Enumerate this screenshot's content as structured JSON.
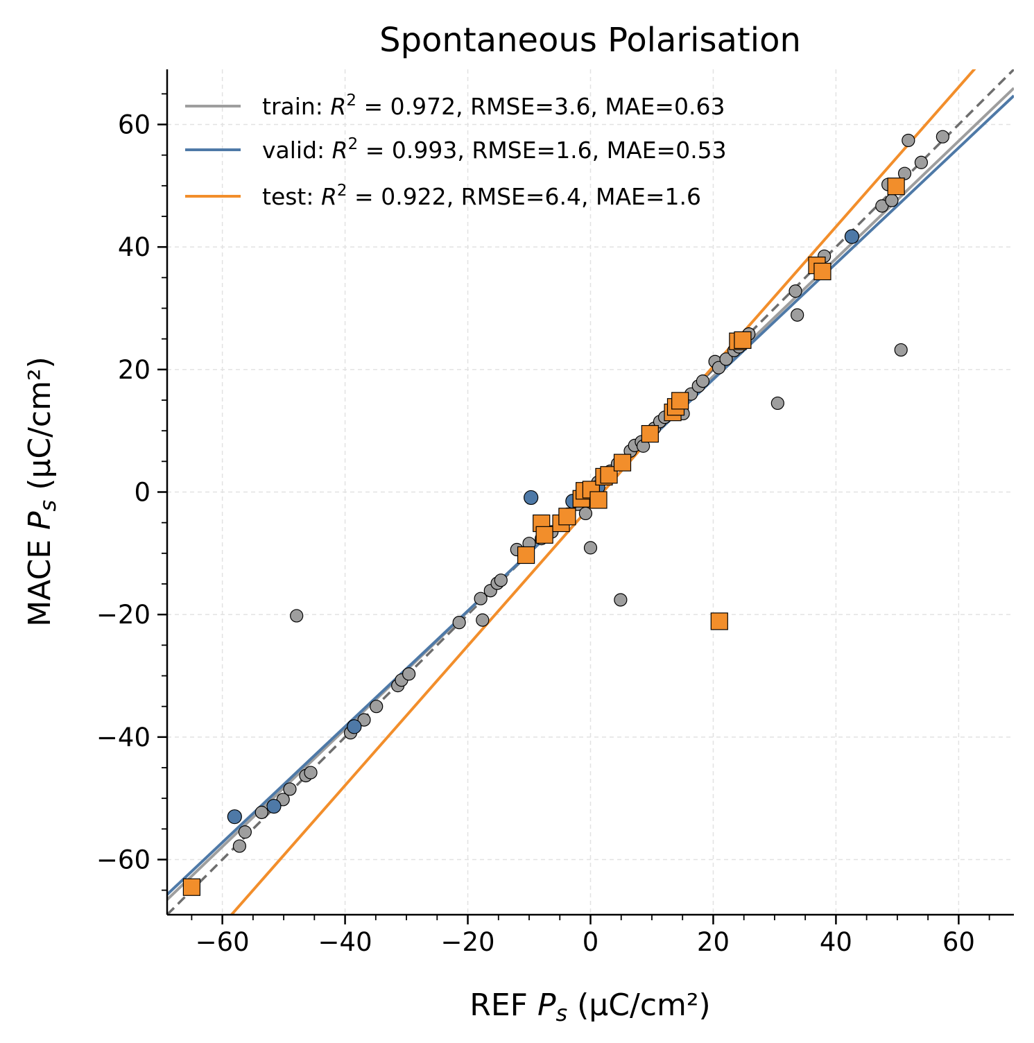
{
  "chart_data": {
    "type": "scatter",
    "title": "Spontaneous Polarisation",
    "xlabel": {
      "prefix": "REF ",
      "symbol": "P",
      "subscript": "s",
      "unit": " (µC/cm²)"
    },
    "ylabel": {
      "prefix": "MACE ",
      "symbol": "P",
      "subscript": "s",
      "unit": " (µC/cm²)"
    },
    "xlim": [
      -69,
      69
    ],
    "ylim": [
      -69,
      69
    ],
    "ticks": [
      -60,
      -40,
      -20,
      0,
      20,
      40,
      60
    ],
    "tick_labels": [
      "−60",
      "−40",
      "−20",
      "0",
      "20",
      "40",
      "60"
    ],
    "minor_step": 5,
    "grid": true,
    "legend_position": "top-left",
    "identity_line": true,
    "series": [
      {
        "name": "train",
        "color": "#9e9e9e",
        "marker": "circle",
        "legend": {
          "prefix": "train: ",
          "r2": "0.972",
          "rest": ", RMSE=3.6, MAE=0.63"
        },
        "fit": {
          "slope": 0.96,
          "intercept": -0.3
        },
        "points": [
          [
            -57.2,
            -57.8
          ],
          [
            -56.3,
            -55.5
          ],
          [
            -53.6,
            -52.3
          ],
          [
            -50.1,
            -50.2
          ],
          [
            -49.0,
            -48.5
          ],
          [
            -46.4,
            -46.3
          ],
          [
            -45.6,
            -45.8
          ],
          [
            -47.9,
            -20.2
          ],
          [
            -39.1,
            -39.3
          ],
          [
            -38.6,
            -38.2
          ],
          [
            -36.9,
            -37.2
          ],
          [
            -34.9,
            -35.0
          ],
          [
            -31.4,
            -31.6
          ],
          [
            -30.8,
            -30.7
          ],
          [
            -29.6,
            -29.7
          ],
          [
            -21.4,
            -21.3
          ],
          [
            -17.9,
            -17.4
          ],
          [
            -17.6,
            -20.9
          ],
          [
            -16.3,
            -16.1
          ],
          [
            -15.2,
            -14.9
          ],
          [
            -14.6,
            -14.4
          ],
          [
            -12.0,
            -9.4
          ],
          [
            -10.0,
            -8.4
          ],
          [
            -8.0,
            -7.6
          ],
          [
            -6.3,
            -6.5
          ],
          [
            -4.9,
            -5.2
          ],
          [
            -3.7,
            -3.6
          ],
          [
            -2.1,
            -2.0
          ],
          [
            -0.8,
            -3.5
          ],
          [
            -1.2,
            -0.5
          ],
          [
            -0.4,
            0.4
          ],
          [
            0.2,
            0.6
          ],
          [
            0.8,
            0.9
          ],
          [
            0.0,
            -9.1
          ],
          [
            1.2,
            1.6
          ],
          [
            2.1,
            2.3
          ],
          [
            3.2,
            3.4
          ],
          [
            4.4,
            4.6
          ],
          [
            5.2,
            5.0
          ],
          [
            6.5,
            6.7
          ],
          [
            7.2,
            7.6
          ],
          [
            8.3,
            8.2
          ],
          [
            8.6,
            7.5
          ],
          [
            10.4,
            10.4
          ],
          [
            11.3,
            11.5
          ],
          [
            12.1,
            12.2
          ],
          [
            13.5,
            12.9
          ],
          [
            15.1,
            12.8
          ],
          [
            14.2,
            14.5
          ],
          [
            16.4,
            16.0
          ],
          [
            17.6,
            17.3
          ],
          [
            18.3,
            18.1
          ],
          [
            20.3,
            21.3
          ],
          [
            20.9,
            20.3
          ],
          [
            22.1,
            21.7
          ],
          [
            23.4,
            23.1
          ],
          [
            24.2,
            23.7
          ],
          [
            25.8,
            25.8
          ],
          [
            30.5,
            14.5
          ],
          [
            33.7,
            28.9
          ],
          [
            33.4,
            32.8
          ],
          [
            38.1,
            38.5
          ],
          [
            37.2,
            36.5
          ],
          [
            4.9,
            -17.6
          ],
          [
            47.5,
            46.7
          ],
          [
            48.5,
            50.2
          ],
          [
            49.1,
            47.6
          ],
          [
            50.6,
            23.2
          ],
          [
            51.2,
            52.0
          ],
          [
            51.8,
            57.4
          ],
          [
            53.9,
            53.8
          ],
          [
            57.4,
            58.0
          ]
        ]
      },
      {
        "name": "valid",
        "color": "#4e79a7",
        "marker": "circle",
        "legend": {
          "prefix": "valid: ",
          "r2": "0.993",
          "rest": ", RMSE=1.6, MAE=0.53"
        },
        "fit": {
          "slope": 0.945,
          "intercept": -0.5
        },
        "points": [
          [
            -58.0,
            -53.0
          ],
          [
            -51.6,
            -51.3
          ],
          [
            -38.5,
            -38.3
          ],
          [
            -9.7,
            -0.9
          ],
          [
            -2.9,
            -1.5
          ],
          [
            -1.2,
            -0.9
          ],
          [
            -0.5,
            -1.1
          ],
          [
            1.2,
            0.8
          ],
          [
            42.6,
            41.7
          ]
        ]
      },
      {
        "name": "test",
        "color": "#f28e2b",
        "marker": "square",
        "legend": {
          "prefix": "test: ",
          "r2": "0.922",
          "rest": ", RMSE=6.4, MAE=1.6"
        },
        "fit": {
          "slope": 1.14,
          "intercept": -2.3
        },
        "points": [
          [
            -65.0,
            -64.5
          ],
          [
            -10.5,
            -10.3
          ],
          [
            -8.0,
            -5.1
          ],
          [
            -7.5,
            -7.0
          ],
          [
            -4.8,
            -5.1
          ],
          [
            -3.8,
            -4.0
          ],
          [
            -1.5,
            -1.1
          ],
          [
            -1.0,
            0.2
          ],
          [
            0.1,
            0.4
          ],
          [
            1.3,
            -1.3
          ],
          [
            2.2,
            2.5
          ],
          [
            3.0,
            2.8
          ],
          [
            5.2,
            4.8
          ],
          [
            9.7,
            9.5
          ],
          [
            13.4,
            13.0
          ],
          [
            13.9,
            13.9
          ],
          [
            14.6,
            14.9
          ],
          [
            21.0,
            -21.1
          ],
          [
            24.0,
            24.6
          ],
          [
            24.8,
            24.8
          ],
          [
            36.9,
            37.0
          ],
          [
            37.8,
            36.0
          ],
          [
            49.8,
            49.9
          ]
        ]
      }
    ]
  }
}
